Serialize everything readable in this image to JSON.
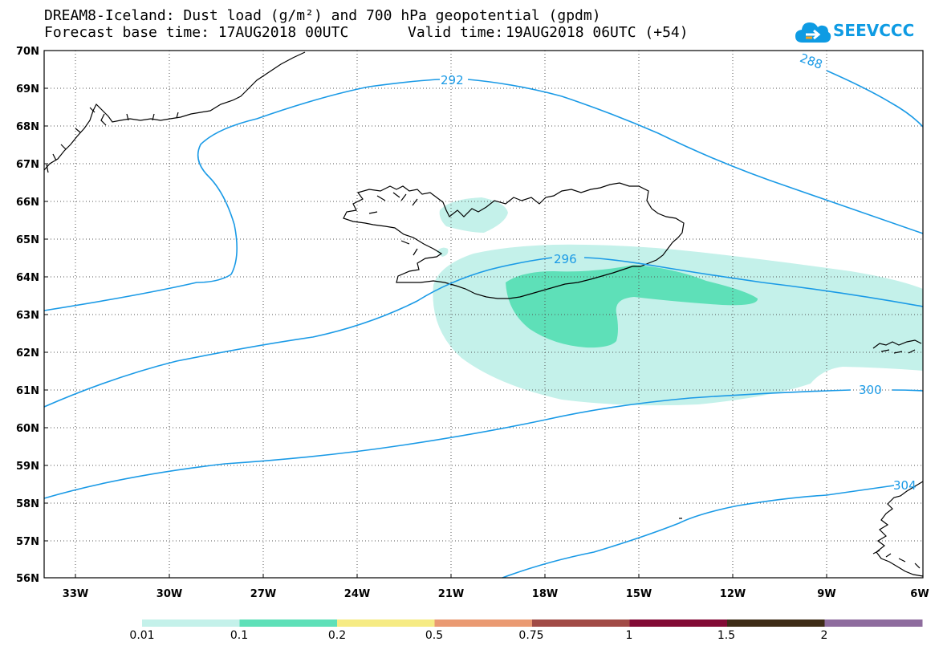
{
  "title": {
    "line1": "DREAM8-Iceland: Dust load (g/m²) and 700 hPa geopotential (gpdm)",
    "base_label": "Forecast base time: 17AUG2018 00UTC",
    "valid_prefix": "Valid time:",
    "valid_time": "19AUG2018 06UTC (+54)"
  },
  "logo": {
    "text": "SEEVCCC",
    "icon": "cloud-icon",
    "color": "#0e9be3"
  },
  "map": {
    "lat_labels": [
      "70N",
      "69N",
      "68N",
      "67N",
      "66N",
      "65N",
      "64N",
      "63N",
      "62N",
      "61N",
      "60N",
      "59N",
      "58N",
      "57N",
      "56N"
    ],
    "lon_labels": [
      "33W",
      "30W",
      "27W",
      "24W",
      "21W",
      "18W",
      "15W",
      "12W",
      "9W",
      "6W"
    ],
    "contour_labels": [
      "288",
      "292",
      "296",
      "300",
      "304"
    ],
    "contour_color": "#1a9ae6"
  },
  "colorbar": {
    "colors": [
      "#c4f1ea",
      "#5ee0b8",
      "#f6eb84",
      "#ea9a72",
      "#a14b46",
      "#820b35",
      "#3e2c17",
      "#8e6c9e"
    ],
    "labels": [
      "0.01",
      "0.1",
      "0.2",
      "0.5",
      "0.75",
      "1",
      "1.5",
      "2"
    ]
  }
}
